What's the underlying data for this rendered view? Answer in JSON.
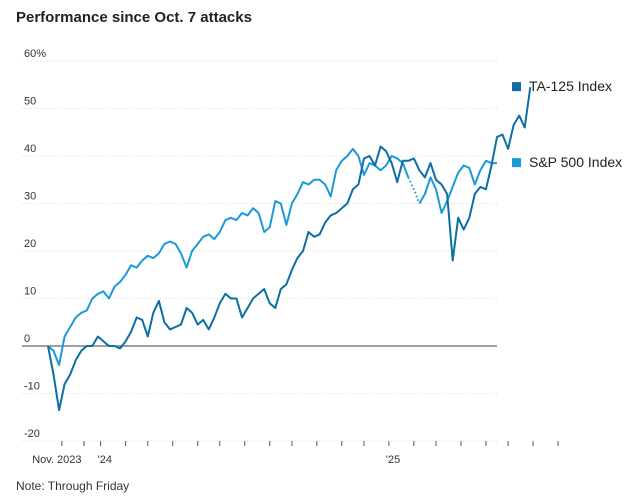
{
  "title": "Performance since Oct. 7 attacks",
  "note": "Note: Through Friday",
  "colors": {
    "ta125": "#0b6fa4",
    "sp500": "#1a9ad6",
    "grid": "#d9d9d9",
    "zero": "#666666"
  },
  "chart_data": {
    "type": "line",
    "title": "Performance since Oct. 7 attacks",
    "xlabel": "",
    "ylabel": "",
    "ylim": [
      -20,
      60
    ],
    "y_ticks": [
      {
        "value": 60,
        "label": "60%"
      },
      {
        "value": 50,
        "label": "50"
      },
      {
        "value": 40,
        "label": "40"
      },
      {
        "value": 30,
        "label": "30"
      },
      {
        "value": 20,
        "label": "20"
      },
      {
        "value": 10,
        "label": "10"
      },
      {
        "value": 0,
        "label": "0"
      },
      {
        "value": -10,
        "label": "-10"
      },
      {
        "value": -20,
        "label": "-20"
      }
    ],
    "x_labels": [
      {
        "week": 2.5,
        "label": "Nov. 2023"
      },
      {
        "week": 9.5,
        "label": "'24"
      },
      {
        "week": 61.5,
        "label": "'25"
      }
    ],
    "month_tick_weeks": [
      2.5,
      6.5,
      9.5,
      14,
      18,
      22.5,
      27,
      31,
      35.5,
      40,
      44,
      48.5,
      53,
      57,
      61.5,
      66,
      70,
      74.5,
      79,
      83,
      87.5,
      92
    ],
    "dotted_segment": {
      "series": "S&P 500 Index",
      "from_week": 65,
      "to_week": 67
    },
    "series": [
      {
        "name": "S&P 500 Index",
        "values": [
          0,
          -1,
          -4,
          2,
          4,
          6,
          7,
          7.5,
          10,
          11,
          11.5,
          10,
          12.5,
          13.5,
          15,
          17,
          16.5,
          18,
          19,
          18.5,
          19.5,
          21.5,
          22,
          21.5,
          19.5,
          16.5,
          20,
          21.5,
          23,
          23.5,
          22.5,
          24,
          26.5,
          27,
          26.5,
          28,
          27.5,
          29,
          28,
          24,
          25,
          30.5,
          30,
          25.5,
          30,
          32,
          34.5,
          34,
          35,
          35,
          34,
          31.5,
          37,
          39,
          40,
          41.5,
          40,
          36,
          38.5,
          38,
          37,
          38,
          40,
          39.5,
          38.5,
          35.5,
          33,
          30,
          32,
          35.5,
          33,
          28,
          30.5,
          33.5,
          36.5,
          38,
          37.5,
          34,
          37,
          39,
          38.5,
          38.5
        ]
      },
      {
        "name": "TA-125 Index",
        "values": [
          0,
          -6,
          -13.5,
          -8,
          -6,
          -3,
          -1,
          0,
          0,
          2,
          1,
          0,
          0,
          -0.5,
          1,
          3,
          6,
          5.5,
          2,
          7,
          9.5,
          5,
          3.5,
          4,
          4.5,
          8,
          7,
          4.5,
          5.5,
          3.5,
          6,
          9,
          11,
          10,
          10,
          6,
          8,
          10,
          11,
          12,
          9,
          8,
          12,
          13,
          16,
          18.5,
          20,
          24,
          23,
          23.5,
          26,
          27.5,
          28,
          29,
          30,
          33,
          34,
          39.5,
          40,
          38,
          42,
          41,
          38.5,
          34.5,
          39,
          39,
          39.5,
          37,
          35.5,
          38.5,
          35,
          34,
          32,
          18,
          27,
          24.5,
          27,
          32,
          33.5,
          33,
          38,
          44,
          44.5,
          41.5,
          46.5,
          48.5,
          46,
          54.5
        ]
      }
    ]
  },
  "legend": [
    {
      "name": "TA-125 Index",
      "value": 54.5
    },
    {
      "name": "S&P 500 Index",
      "value": 38.5
    }
  ]
}
